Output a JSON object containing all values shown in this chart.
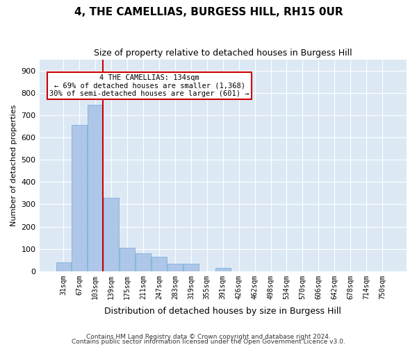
{
  "title": "4, THE CAMELLIAS, BURGESS HILL, RH15 0UR",
  "subtitle": "Size of property relative to detached houses in Burgess Hill",
  "xlabel": "Distribution of detached houses by size in Burgess Hill",
  "ylabel": "Number of detached properties",
  "footnote1": "Contains HM Land Registry data © Crown copyright and database right 2024.",
  "footnote2": "Contains public sector information licensed under the Open Government Licence v3.0.",
  "annotation_line1": "4 THE CAMELLIAS: 134sqm",
  "annotation_line2": "← 69% of detached houses are smaller (1,368)",
  "annotation_line3": "30% of semi-detached houses are larger (601) →",
  "property_size": 134,
  "bar_color": "#aec6e8",
  "bar_edge_color": "#6fa8d5",
  "vline_color": "#cc0000",
  "box_color": "#cc0000",
  "background_color": "#dce9f5",
  "categories": [
    "31sqm",
    "67sqm",
    "103sqm",
    "139sqm",
    "175sqm",
    "211sqm",
    "247sqm",
    "283sqm",
    "319sqm",
    "355sqm",
    "391sqm",
    "426sqm",
    "462sqm",
    "498sqm",
    "534sqm",
    "570sqm",
    "606sqm",
    "642sqm",
    "678sqm",
    "714sqm",
    "750sqm"
  ],
  "bar_heights": [
    40,
    655,
    745,
    330,
    105,
    80,
    65,
    35,
    35,
    0,
    15,
    0,
    0,
    0,
    0,
    0,
    0,
    0,
    0,
    0,
    0
  ],
  "ylim": [
    0,
    950
  ],
  "yticks": [
    0,
    100,
    200,
    300,
    400,
    500,
    600,
    700,
    800,
    900
  ]
}
